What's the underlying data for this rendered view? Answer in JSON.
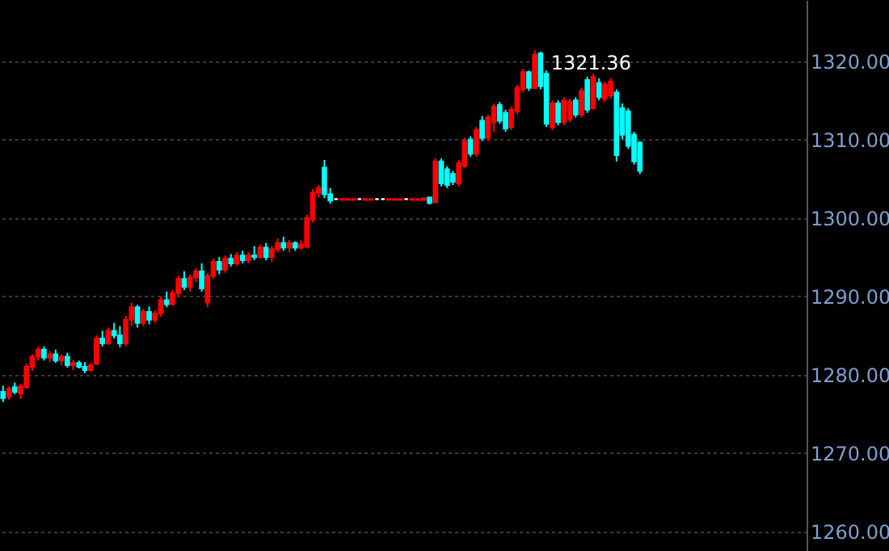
{
  "chart_data": {
    "type": "candlestick",
    "categories": [
      null,
      null,
      null,
      null,
      null,
      null,
      null,
      null,
      null,
      null,
      null,
      null,
      null,
      null,
      null,
      null,
      null,
      null,
      null,
      null,
      null,
      null,
      null,
      null,
      null,
      null,
      null,
      null,
      null,
      null,
      null,
      null,
      null,
      null,
      null,
      null,
      null,
      null,
      null,
      null,
      null,
      null,
      null,
      null,
      null,
      null,
      null,
      null,
      null,
      null,
      null,
      null,
      null,
      null,
      null,
      null,
      null,
      null,
      null,
      null,
      null,
      null,
      null,
      null,
      null,
      null,
      null,
      null,
      null,
      null,
      null,
      null,
      null,
      null,
      null,
      null,
      null,
      null,
      null,
      null,
      null,
      null,
      null,
      null,
      null,
      null,
      null,
      null,
      null,
      null,
      null,
      null,
      null,
      null,
      null,
      null,
      null,
      null,
      null,
      null,
      null,
      null,
      null,
      null,
      null,
      null,
      null,
      null,
      null,
      null,
      null,
      null,
      null,
      null,
      null,
      null,
      null,
      null,
      null,
      null,
      null,
      null,
      null,
      null,
      null,
      null,
      null,
      null,
      null,
      null,
      null,
      null,
      null,
      null,
      null,
      null,
      null,
      null
    ],
    "ohlc": [
      [
        1277.8,
        1278.6,
        1276.5,
        1277.0
      ],
      [
        1277.2,
        1278.5,
        1276.8,
        1278.2
      ],
      [
        1278.4,
        1279.0,
        1277.5,
        1277.8
      ],
      [
        1277.6,
        1278.8,
        1276.9,
        1278.5
      ],
      [
        1278.4,
        1281.4,
        1278.2,
        1281.0
      ],
      [
        1281.0,
        1282.6,
        1280.5,
        1282.3
      ],
      [
        1282.3,
        1283.6,
        1281.8,
        1283.2
      ],
      [
        1283.2,
        1283.6,
        1281.8,
        1282.2
      ],
      [
        1282.2,
        1283.0,
        1281.6,
        1282.6
      ],
      [
        1282.6,
        1283.2,
        1281.5,
        1281.8
      ],
      [
        1281.8,
        1282.6,
        1281.2,
        1282.3
      ],
      [
        1282.3,
        1282.8,
        1280.9,
        1281.2
      ],
      [
        1281.2,
        1281.9,
        1280.6,
        1281.5
      ],
      [
        1281.5,
        1281.8,
        1280.8,
        1281.0
      ],
      [
        1281.0,
        1281.6,
        1280.2,
        1280.6
      ],
      [
        1280.6,
        1281.5,
        1280.4,
        1281.2
      ],
      [
        1281.4,
        1285.0,
        1281.2,
        1284.6
      ],
      [
        1284.6,
        1285.6,
        1283.6,
        1284.0
      ],
      [
        1284.0,
        1286.0,
        1283.8,
        1285.6
      ],
      [
        1285.6,
        1286.6,
        1284.6,
        1285.0
      ],
      [
        1285.0,
        1286.2,
        1283.5,
        1284.0
      ],
      [
        1284.0,
        1287.5,
        1283.6,
        1287.0
      ],
      [
        1287.0,
        1289.2,
        1286.2,
        1288.6
      ],
      [
        1288.6,
        1288.9,
        1286.0,
        1286.6
      ],
      [
        1286.6,
        1288.4,
        1286.2,
        1288.0
      ],
      [
        1288.0,
        1288.7,
        1286.4,
        1287.0
      ],
      [
        1287.0,
        1288.2,
        1286.6,
        1287.8
      ],
      [
        1287.8,
        1290.0,
        1287.4,
        1289.5
      ],
      [
        1289.5,
        1290.6,
        1288.6,
        1289.0
      ],
      [
        1289.0,
        1290.8,
        1288.8,
        1290.4
      ],
      [
        1290.4,
        1292.6,
        1290.0,
        1292.2
      ],
      [
        1292.2,
        1293.2,
        1290.8,
        1291.2
      ],
      [
        1291.2,
        1292.8,
        1290.6,
        1292.4
      ],
      [
        1292.4,
        1293.6,
        1291.8,
        1293.2
      ],
      [
        1293.2,
        1294.2,
        1290.6,
        1291.0
      ],
      [
        1289.2,
        1293.0,
        1288.6,
        1292.6
      ],
      [
        1292.6,
        1294.8,
        1292.2,
        1294.4
      ],
      [
        1294.4,
        1295.0,
        1292.8,
        1293.4
      ],
      [
        1293.4,
        1295.2,
        1293.0,
        1294.8
      ],
      [
        1294.8,
        1295.4,
        1293.8,
        1294.2
      ],
      [
        1294.2,
        1295.6,
        1293.9,
        1295.2
      ],
      [
        1295.2,
        1295.8,
        1294.2,
        1294.6
      ],
      [
        1294.6,
        1295.6,
        1294.2,
        1295.2
      ],
      [
        1295.2,
        1296.4,
        1294.6,
        1295.0
      ],
      [
        1295.0,
        1296.6,
        1294.8,
        1296.2
      ],
      [
        1296.2,
        1296.8,
        1294.6,
        1295.0
      ],
      [
        1295.0,
        1296.4,
        1294.4,
        1296.0
      ],
      [
        1296.0,
        1297.4,
        1295.6,
        1296.8
      ],
      [
        1296.8,
        1297.6,
        1295.8,
        1296.2
      ],
      [
        1296.2,
        1297.2,
        1295.6,
        1296.8
      ],
      [
        1296.8,
        1297.0,
        1295.8,
        1296.2
      ],
      [
        1296.2,
        1297.2,
        1295.9,
        1296.6
      ],
      [
        1296.3,
        1300.4,
        1296.2,
        1300.0
      ],
      [
        1299.8,
        1303.7,
        1299.4,
        1303.2
      ],
      [
        1303.2,
        1304.2,
        1302.6,
        1303.8
      ],
      [
        1306.4,
        1307.4,
        1302.5,
        1303.0
      ],
      [
        1303.0,
        1303.8,
        1301.8,
        1302.2
      ],
      [
        1302.4,
        1302.5,
        1302.3,
        1302.4
      ],
      [
        1302.3,
        1302.5,
        1302.3,
        1302.4
      ],
      [
        1302.3,
        1302.5,
        1302.3,
        1302.4
      ],
      [
        1302.3,
        1302.5,
        1302.3,
        1302.4
      ],
      [
        1302.4,
        1302.5,
        1302.3,
        1302.4
      ],
      [
        1302.3,
        1302.5,
        1302.3,
        1302.4
      ],
      [
        1302.3,
        1302.5,
        1302.3,
        1302.4
      ],
      [
        1302.4,
        1302.5,
        1302.3,
        1302.4
      ],
      [
        1302.4,
        1302.5,
        1302.3,
        1302.4
      ],
      [
        1302.3,
        1302.5,
        1302.3,
        1302.4
      ],
      [
        1302.3,
        1302.5,
        1302.3,
        1302.4
      ],
      [
        1302.3,
        1302.5,
        1302.3,
        1302.4
      ],
      [
        1302.4,
        1302.5,
        1302.3,
        1302.4
      ],
      [
        1302.3,
        1302.5,
        1302.3,
        1302.4
      ],
      [
        1302.3,
        1302.5,
        1302.3,
        1302.4
      ],
      [
        1302.3,
        1302.6,
        1302.3,
        1302.5
      ],
      [
        1302.6,
        1302.7,
        1301.7,
        1301.9
      ],
      [
        1302.0,
        1307.6,
        1301.9,
        1307.2
      ],
      [
        1307.2,
        1307.6,
        1304.0,
        1304.4
      ],
      [
        1306.2,
        1306.6,
        1303.8,
        1304.2
      ],
      [
        1305.6,
        1306.0,
        1304.2,
        1304.6
      ],
      [
        1304.4,
        1307.4,
        1304.0,
        1307.0
      ],
      [
        1306.6,
        1310.2,
        1306.4,
        1309.8
      ],
      [
        1310.0,
        1310.4,
        1307.8,
        1308.2
      ],
      [
        1308.2,
        1311.6,
        1307.8,
        1311.2
      ],
      [
        1312.4,
        1313.0,
        1309.8,
        1310.2
      ],
      [
        1310.2,
        1313.2,
        1309.8,
        1312.8
      ],
      [
        1312.2,
        1314.6,
        1311.0,
        1314.2
      ],
      [
        1314.4,
        1314.8,
        1312.0,
        1312.4
      ],
      [
        1313.4,
        1313.8,
        1311.0,
        1311.4
      ],
      [
        1311.6,
        1314.2,
        1311.2,
        1313.8
      ],
      [
        1313.6,
        1317.0,
        1313.2,
        1316.6
      ],
      [
        1316.4,
        1319.0,
        1316.0,
        1318.6
      ],
      [
        1318.6,
        1318.8,
        1316.2,
        1316.6
      ],
      [
        1316.6,
        1321.36,
        1316.4,
        1320.8
      ],
      [
        1321.0,
        1321.2,
        1316.4,
        1316.8
      ],
      [
        1318.4,
        1318.8,
        1311.6,
        1312.0
      ],
      [
        1311.6,
        1315.0,
        1311.2,
        1314.6
      ],
      [
        1314.6,
        1315.0,
        1311.8,
        1312.2
      ],
      [
        1312.2,
        1315.4,
        1311.8,
        1315.0
      ],
      [
        1312.6,
        1315.2,
        1312.2,
        1314.8
      ],
      [
        1315.0,
        1315.4,
        1312.8,
        1313.2
      ],
      [
        1313.2,
        1316.6,
        1312.8,
        1316.2
      ],
      [
        1317.6,
        1318.0,
        1313.4,
        1313.8
      ],
      [
        1314.0,
        1318.4,
        1313.8,
        1318.0
      ],
      [
        1317.2,
        1317.8,
        1315.0,
        1315.4
      ],
      [
        1315.2,
        1317.4,
        1314.8,
        1317.0
      ],
      [
        1315.6,
        1317.8,
        1315.2,
        1317.4
      ],
      [
        1316.0,
        1316.4,
        1307.2,
        1308.0
      ],
      [
        1314.0,
        1314.6,
        1310.0,
        1310.6
      ],
      [
        1313.6,
        1314.0,
        1308.8,
        1309.2
      ],
      [
        1310.6,
        1311.0,
        1306.8,
        1307.2
      ],
      [
        1309.6,
        1309.8,
        1305.6,
        1306.0
      ],
      null,
      null,
      null,
      null,
      null,
      null,
      null,
      null,
      null,
      null,
      null,
      null,
      null,
      null,
      null,
      null,
      null,
      null,
      null,
      null,
      null,
      null,
      null,
      null,
      null,
      null,
      null,
      null
    ],
    "colors": [
      "#00ffff",
      "#ff0000",
      "#00ffff",
      "#ff0000",
      "#ff0000",
      "#ff0000",
      "#ff0000",
      "#00ffff",
      "#ff0000",
      "#00ffff",
      "#ff0000",
      "#00ffff",
      "#ff0000",
      "#00ffff",
      "#00ffff",
      "#ff0000",
      "#ff0000",
      "#00ffff",
      "#ff0000",
      "#00ffff",
      "#00ffff",
      "#ff0000",
      "#ff0000",
      "#00ffff",
      "#ff0000",
      "#00ffff",
      "#ff0000",
      "#ff0000",
      "#00ffff",
      "#ff0000",
      "#ff0000",
      "#00ffff",
      "#ff0000",
      "#ff0000",
      "#00ffff",
      "#ff0000",
      "#ff0000",
      "#00ffff",
      "#ff0000",
      "#00ffff",
      "#ff0000",
      "#00ffff",
      "#ff0000",
      "#00ffff",
      "#ff0000",
      "#00ffff",
      "#ff0000",
      "#ff0000",
      "#00ffff",
      "#ff0000",
      "#00ffff",
      "#ff0000",
      "#ff0000",
      "#ff0000",
      "#ff0000",
      "#00ffff",
      "#00ffff",
      "#ffffff",
      "#ff0000",
      "#ff0000",
      "#ff0000",
      "#ffffff",
      "#ff0000",
      "#ff0000",
      "#ffffff",
      "#ffffff",
      "#ff0000",
      "#ff0000",
      "#ff0000",
      "#ffffff",
      "#ff0000",
      "#ff0000",
      "#ff0000",
      "#00ffff",
      "#ff0000",
      "#00ffff",
      "#00ffff",
      "#00ffff",
      "#ff0000",
      "#ff0000",
      "#00ffff",
      "#ff0000",
      "#00ffff",
      "#ff0000",
      "#ff0000",
      "#00ffff",
      "#00ffff",
      "#ff0000",
      "#ff0000",
      "#ff0000",
      "#00ffff",
      "#ff0000",
      "#00ffff",
      "#00ffff",
      "#ff0000",
      "#00ffff",
      "#ff0000",
      "#ff0000",
      "#00ffff",
      "#ff0000",
      "#00ffff",
      "#ff0000",
      "#00ffff",
      "#ff0000",
      "#ff0000",
      "#00ffff",
      "#00ffff",
      "#00ffff",
      "#00ffff",
      "#00ffff",
      null,
      null,
      null,
      null,
      null,
      null,
      null,
      null,
      null,
      null,
      null,
      null,
      null,
      null,
      null,
      null,
      null,
      null,
      null,
      null,
      null,
      null,
      null,
      null,
      null,
      null,
      null,
      null
    ],
    "ylim": [
      1257.5,
      1327.8
    ],
    "yticks": [
      {
        "value": 1260,
        "label": "1260.00"
      },
      {
        "value": 1270,
        "label": "1270.00"
      },
      {
        "value": 1280,
        "label": "1280.00"
      },
      {
        "value": 1290,
        "label": "1290.00"
      },
      {
        "value": 1300,
        "label": "1300.00"
      },
      {
        "value": 1310,
        "label": "1310.00"
      },
      {
        "value": 1320,
        "label": "1320.00"
      }
    ],
    "grid": "y",
    "tick_labels": "y",
    "annotations": [
      "1321.36"
    ]
  }
}
